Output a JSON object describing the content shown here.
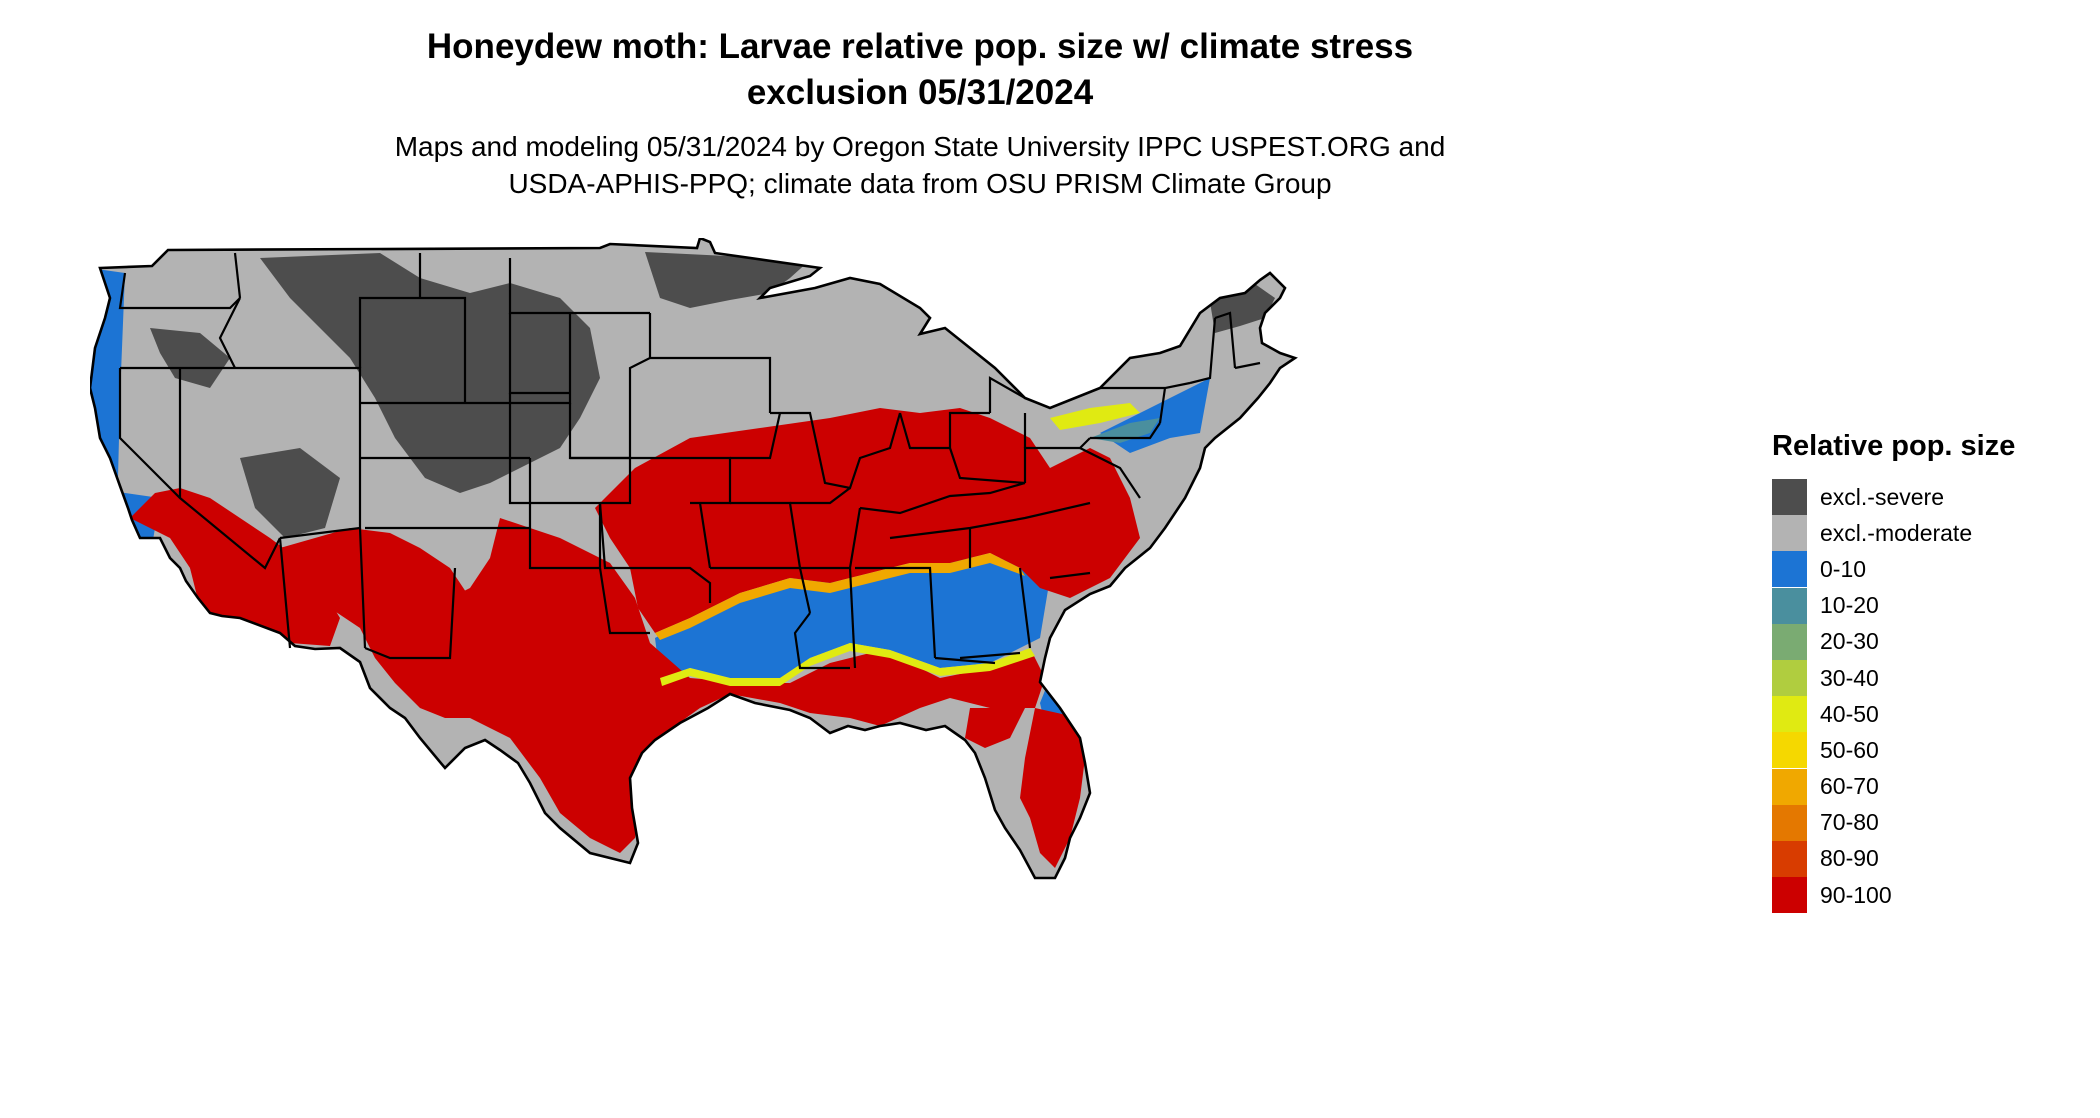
{
  "title_line1": "Honeydew moth: Larvae relative pop. size w/ climate stress",
  "title_line2": "exclusion 05/31/2024",
  "subtitle_line1": "Maps and modeling 05/31/2024 by Oregon State University IPPC USPEST.ORG and",
  "subtitle_line2": "USDA-APHIS-PPQ; climate data from OSU PRISM Climate Group",
  "legend": {
    "title": "Relative pop. size",
    "items": [
      {
        "label": "excl.-severe",
        "color": "#4d4d4d"
      },
      {
        "label": "excl.-moderate",
        "color": "#b3b3b3"
      },
      {
        "label": "0-10",
        "color": "#1c74d4"
      },
      {
        "label": "10-20",
        "color": "#4a8f9e"
      },
      {
        "label": "20-30",
        "color": "#7aab72"
      },
      {
        "label": "30-40",
        "color": "#b0cd3f"
      },
      {
        "label": "40-50",
        "color": "#e0ea12"
      },
      {
        "label": "50-60",
        "color": "#f5d800"
      },
      {
        "label": "60-70",
        "color": "#f0a800"
      },
      {
        "label": "70-80",
        "color": "#e47800"
      },
      {
        "label": "80-90",
        "color": "#d83c00"
      },
      {
        "label": "90-100",
        "color": "#cc0000"
      }
    ]
  }
}
